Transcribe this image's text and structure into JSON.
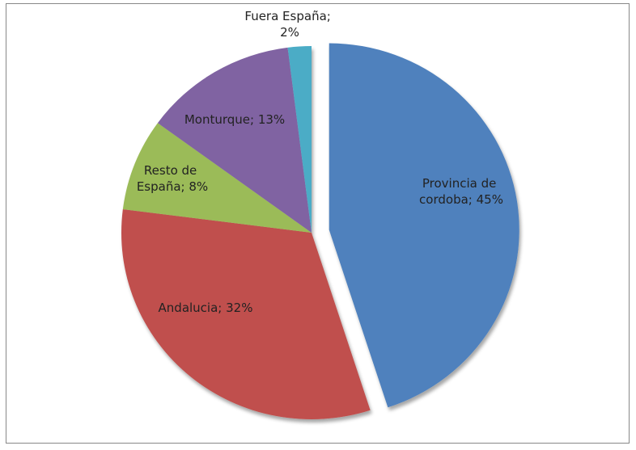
{
  "chart_data": {
    "type": "pie",
    "values": [
      45,
      32,
      8,
      13,
      2
    ],
    "value_labels": [
      "Provincia de cordoba; 45%",
      "Andalucia; 32%",
      "Resto de España; 8%",
      "Monturque; 13%",
      "Fuera España; 2%"
    ],
    "colors": [
      "#4f81bd",
      "#c0504d",
      "#9bbb59",
      "#8064a2",
      "#4bacc6"
    ],
    "exploded": [
      true,
      false,
      false,
      false,
      false
    ]
  }
}
